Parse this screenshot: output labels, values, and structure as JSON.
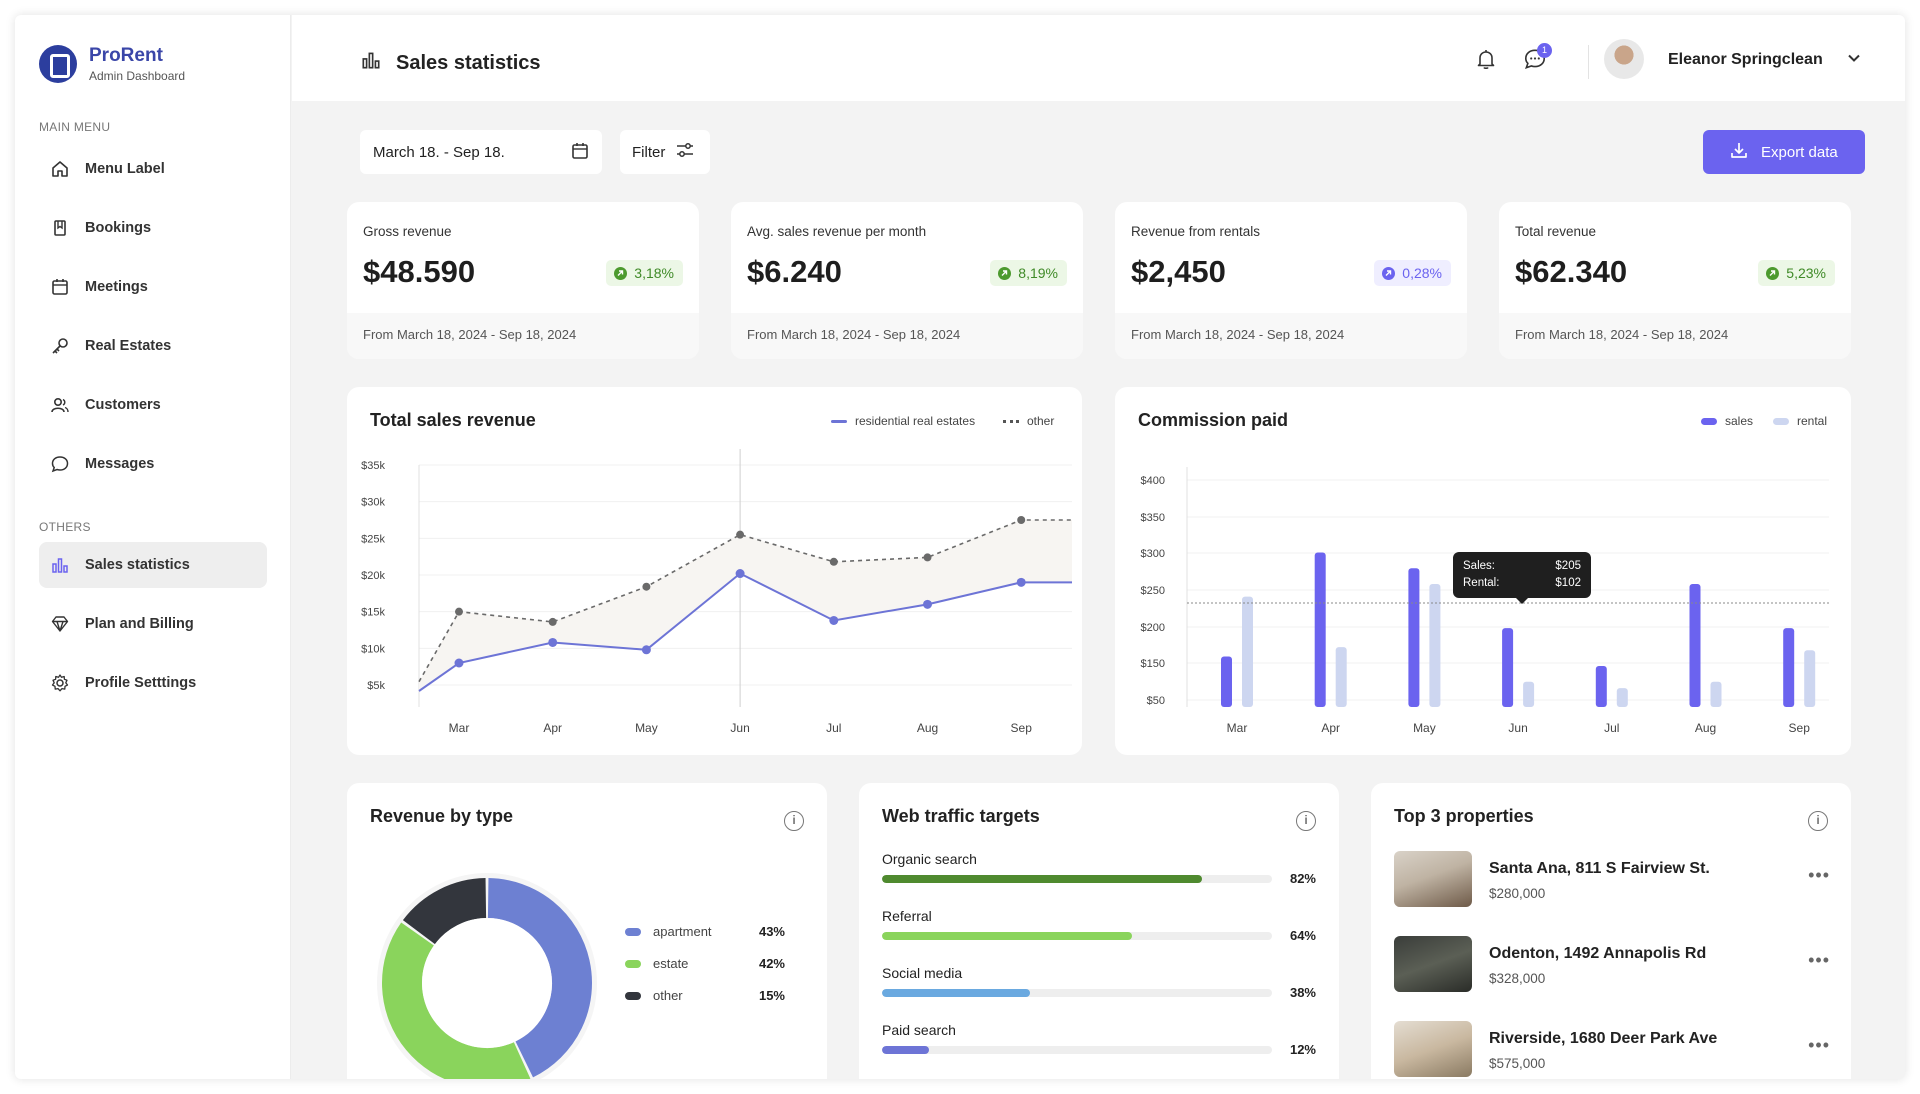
{
  "brand": {
    "name": "ProRent",
    "subtitle": "Admin Dashboard"
  },
  "sidebar": {
    "main_label": "MAIN MENU",
    "others_label": "OTHERS",
    "main_items": [
      {
        "label": "Menu Label",
        "icon": "home-icon"
      },
      {
        "label": "Bookings",
        "icon": "bookmark-icon"
      },
      {
        "label": "Meetings",
        "icon": "calendar-icon"
      },
      {
        "label": "Real Estates",
        "icon": "key-icon"
      },
      {
        "label": "Customers",
        "icon": "users-icon"
      },
      {
        "label": "Messages",
        "icon": "chat-icon"
      }
    ],
    "other_items": [
      {
        "label": "Sales statistics",
        "icon": "bar-chart-icon",
        "active": true
      },
      {
        "label": "Plan and Billing",
        "icon": "diamond-icon"
      },
      {
        "label": "Profile Setttings",
        "icon": "gear-icon"
      }
    ]
  },
  "header": {
    "title": "Sales statistics",
    "notification_count": "1",
    "user_name": "Eleanor Springclean"
  },
  "toolbar": {
    "date_range": "March 18. - Sep 18.",
    "filter_label": "Filter",
    "export_label": "Export data"
  },
  "stats": [
    {
      "label": "Gross revenue",
      "value": "$48.590",
      "change": "3,18%",
      "trend": "up",
      "period": "From March 18, 2024 - Sep 18, 2024"
    },
    {
      "label": "Avg. sales revenue per month",
      "value": "$6.240",
      "change": "8,19%",
      "trend": "up",
      "period": "From March 18, 2024 - Sep 18, 2024"
    },
    {
      "label": "Revenue from rentals",
      "value": "$2,450",
      "change": "0,28%",
      "trend": "down",
      "period": "From March 18, 2024 - Sep 18, 2024"
    },
    {
      "label": "Total revenue",
      "value": "$62.340",
      "change": "5,23%",
      "trend": "up",
      "period": "From March 18, 2024 - Sep 18, 2024"
    }
  ],
  "chart_data": [
    {
      "type": "line",
      "title": "Total sales revenue",
      "x": [
        "Mar",
        "Apr",
        "May",
        "Jun",
        "Jul",
        "Aug",
        "Sep"
      ],
      "ylim": [
        2000,
        35000
      ],
      "yticks": [
        "$35k",
        "$30k",
        "$25k",
        "$20k",
        "$15k",
        "$10k",
        "$5k"
      ],
      "series": [
        {
          "name": "residential real estates",
          "values": [
            8000,
            10800,
            9800,
            20200,
            13800,
            16000,
            19000
          ],
          "color": "#6d74d6",
          "style": "solid"
        },
        {
          "name": "other",
          "values": [
            15000,
            13600,
            18400,
            25500,
            21800,
            22400,
            27500
          ],
          "color": "#666666",
          "style": "dotted"
        }
      ],
      "highlight_x": "Jun",
      "legend": "top-right",
      "grid": true
    },
    {
      "type": "bar",
      "title": "Commission paid",
      "categories": [
        "Mar",
        "Apr",
        "May",
        "Jun",
        "Jul",
        "Aug",
        "Sep"
      ],
      "ylim": [
        40,
        400
      ],
      "yticks": [
        "$400",
        "$350",
        "$300",
        "$250",
        "$200",
        "$150",
        "$50"
      ],
      "series": [
        {
          "name": "sales",
          "values": [
            120,
            285,
            260,
            165,
            105,
            235,
            165
          ],
          "color": "#6b63ef"
        },
        {
          "name": "rental",
          "values": [
            215,
            135,
            235,
            80,
            70,
            80,
            130
          ],
          "color": "#cdd6f0"
        }
      ],
      "reference_line": 205,
      "tooltip": {
        "sales_label": "Sales:",
        "sales_value": "$205",
        "rental_label": "Rental:",
        "rental_value": "$102"
      },
      "legend": "top-right",
      "grid": true
    },
    {
      "type": "pie",
      "title": "Revenue by type",
      "labels": [
        "apartment",
        "estate",
        "other"
      ],
      "values": [
        43,
        42,
        15
      ],
      "display": [
        "43%",
        "42%",
        "15%"
      ],
      "colors": [
        "#6d80d2",
        "#8ad45c",
        "#33363d"
      ]
    }
  ],
  "traffic": {
    "title": "Web traffic targets",
    "items": [
      {
        "label": "Organic search",
        "pct": "82%",
        "value": 0.82,
        "color": "#4f8a2f"
      },
      {
        "label": "Referral",
        "pct": "64%",
        "value": 0.64,
        "color": "#8ad45c"
      },
      {
        "label": "Social media",
        "pct": "38%",
        "value": 0.38,
        "color": "#6aa9e0"
      },
      {
        "label": "Paid search",
        "pct": "12%",
        "value": 0.12,
        "color": "#6d74d6"
      }
    ]
  },
  "properties": {
    "title": "Top 3 properties",
    "items": [
      {
        "name": "Santa Ana, 811 S Fairview St.",
        "price": "$280,000"
      },
      {
        "name": "Odenton, 1492 Annapolis Rd",
        "price": "$328,000"
      },
      {
        "name": "Riverside, 1680 Deer Park Ave",
        "price": "$575,000"
      }
    ]
  },
  "colors": {
    "accent": "#6b63ef",
    "positive": "#4c9a2e"
  }
}
